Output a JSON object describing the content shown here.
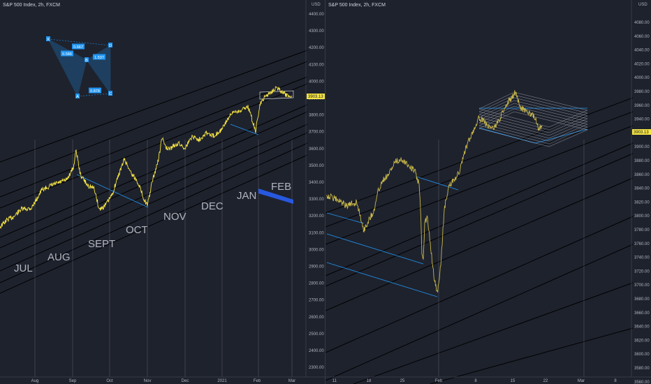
{
  "left": {
    "symbol": "S&P 500 Index, 2h, FXCM",
    "currency": "USD",
    "price_labels": [
      "4400.00",
      "4300.00",
      "4200.00",
      "4100.00",
      "4000.00",
      "3900.00",
      "3800.00",
      "3700.00",
      "3600.00",
      "3500.00",
      "3400.00",
      "3300.00",
      "3200.00",
      "3100.00",
      "3000.00",
      "2900.00",
      "2800.00",
      "2700.00",
      "2600.00",
      "2500.00",
      "2400.00",
      "2300.00"
    ],
    "current_price": "3903.13",
    "time_labels": [
      "Aug",
      "Sep",
      "Oct",
      "Nov",
      "Dec",
      "2021",
      "Feb",
      "Mar"
    ],
    "month_annotations": [
      "JUL",
      "AUG",
      "SEPT",
      "OCT",
      "NOV",
      "DEC",
      "JAN",
      "FEB"
    ],
    "harmonic_points": [
      "X",
      "A",
      "B",
      "C",
      "D"
    ],
    "harmonic_ratios": [
      "0.667",
      "0.586",
      "1.537",
      "0.878"
    ],
    "colors": {
      "price_line": "#f6e544",
      "channel": "#000000",
      "blue": "#2196f3",
      "band": "#2962ff"
    }
  },
  "right": {
    "symbol": "S&P 500 Index, 2h, FXCM",
    "currency": "USD",
    "price_labels": [
      "4080.00",
      "4060.00",
      "4040.00",
      "4020.00",
      "4000.00",
      "3980.00",
      "3960.00",
      "3940.00",
      "3920.00",
      "3900.00",
      "3880.00",
      "3860.00",
      "3840.00",
      "3820.00",
      "3800.00",
      "3780.00",
      "3760.00",
      "3740.00",
      "3720.00",
      "3700.00",
      "3680.00",
      "3660.00",
      "3640.00",
      "3620.00",
      "3600.00",
      "3580.00",
      "3560.00"
    ],
    "current_price": "3903.13",
    "time_labels": [
      "11",
      "18",
      "25",
      "Feb",
      "8",
      "15",
      "22",
      "Mar",
      "8"
    ],
    "colors": {
      "price_line": "#c9b84a",
      "channel": "#000000",
      "blue": "#2196f3",
      "box": "#b2b5be"
    }
  }
}
